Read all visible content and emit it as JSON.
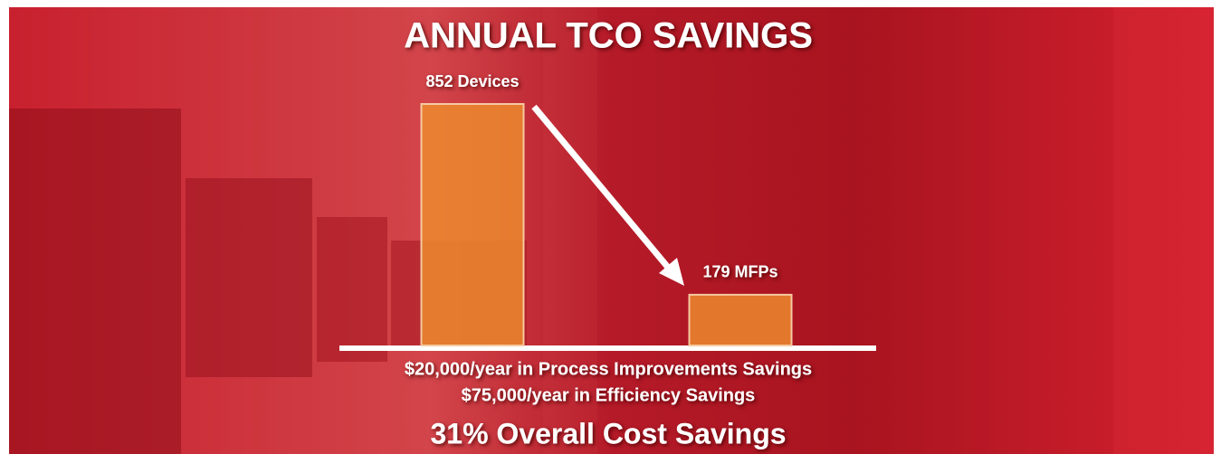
{
  "chart_data": {
    "type": "bar",
    "title": "ANNUAL TCO SAVINGS",
    "values": [
      852,
      179
    ],
    "value_labels": [
      "852 Devices",
      "179 MFPs"
    ],
    "color": "#ec8a2e",
    "annotations": [
      "$20,000/year in Process Improvements Savings",
      "$75,000/year in Efficiency Savings",
      "31% Overall Cost Savings"
    ]
  }
}
